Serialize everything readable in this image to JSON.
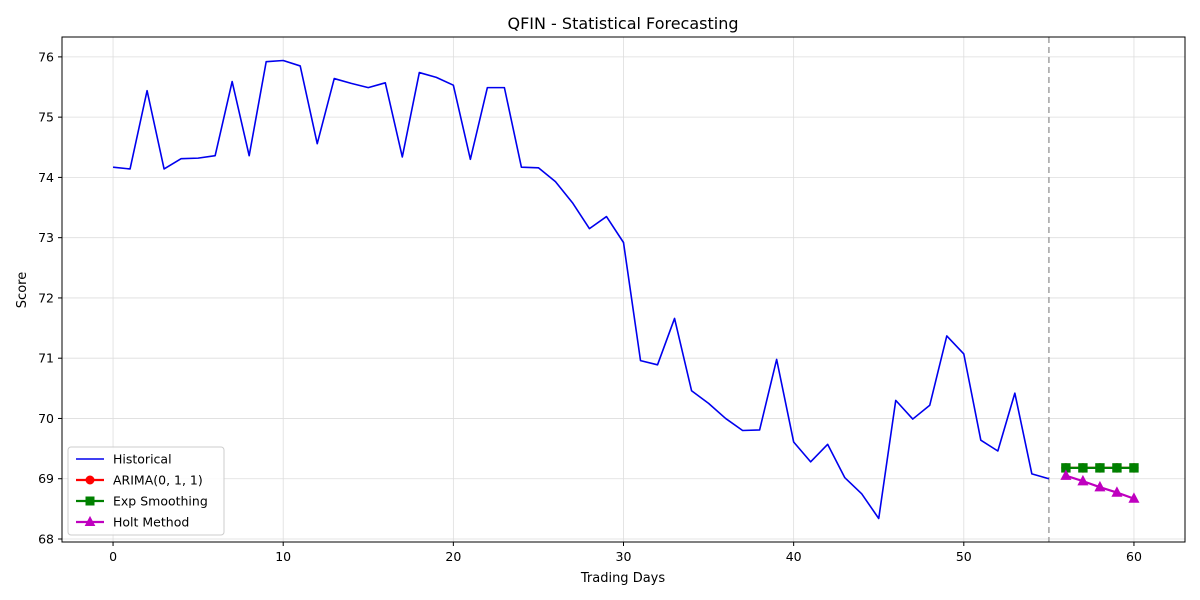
{
  "chart_data": {
    "type": "line",
    "title": "QFIN - Statistical Forecasting",
    "xlabel": "Trading Days",
    "ylabel": "Score",
    "xlim": [
      -3,
      63
    ],
    "ylim": [
      67.95,
      76.33
    ],
    "xticks": [
      0,
      10,
      20,
      30,
      40,
      50,
      60
    ],
    "yticks": [
      68,
      69,
      70,
      71,
      72,
      73,
      74,
      75,
      76
    ],
    "grid": true,
    "legend_position": "lower-left",
    "forecast_start_marker": 55,
    "series": [
      {
        "name": "Historical",
        "color": "#0000ee",
        "marker": "none",
        "x": [
          0,
          1,
          2,
          3,
          4,
          5,
          6,
          7,
          8,
          9,
          10,
          11,
          12,
          13,
          14,
          15,
          16,
          17,
          18,
          19,
          20,
          21,
          22,
          23,
          24,
          25,
          26,
          27,
          28,
          29,
          30,
          31,
          32,
          33,
          34,
          35,
          36,
          37,
          38,
          39,
          40,
          41,
          42,
          43,
          44,
          45,
          46,
          47,
          48,
          49,
          50,
          51,
          52,
          53,
          54,
          55
        ],
        "values": [
          74.17,
          74.14,
          75.44,
          74.14,
          74.31,
          74.32,
          74.36,
          75.59,
          74.36,
          75.92,
          75.94,
          75.85,
          74.56,
          75.64,
          75.56,
          75.49,
          75.57,
          74.34,
          75.74,
          75.66,
          75.53,
          74.3,
          75.49,
          75.49,
          74.17,
          74.16,
          73.93,
          73.58,
          73.15,
          73.35,
          72.92,
          70.96,
          70.89,
          71.66,
          70.46,
          70.25,
          70.0,
          69.8,
          69.81,
          70.98,
          69.61,
          69.28,
          69.57,
          69.02,
          68.75,
          68.34,
          70.3,
          69.99,
          70.22,
          71.37,
          71.07,
          69.64,
          69.46,
          70.42,
          69.08,
          69.0
        ]
      },
      {
        "name": "ARIMA(0, 1, 1)",
        "color": "#ff0000",
        "marker": "circle",
        "x": [
          56,
          57,
          58,
          59,
          60
        ],
        "values": [
          69.18,
          69.18,
          69.18,
          69.18,
          69.18
        ]
      },
      {
        "name": "Exp Smoothing",
        "color": "#008000",
        "marker": "square",
        "x": [
          56,
          57,
          58,
          59,
          60
        ],
        "values": [
          69.18,
          69.18,
          69.18,
          69.18,
          69.18
        ]
      },
      {
        "name": "Holt Method",
        "color": "#bf00bf",
        "marker": "triangle",
        "x": [
          56,
          57,
          58,
          59,
          60
        ],
        "values": [
          69.05,
          68.96,
          68.86,
          68.77,
          68.67
        ]
      }
    ]
  }
}
